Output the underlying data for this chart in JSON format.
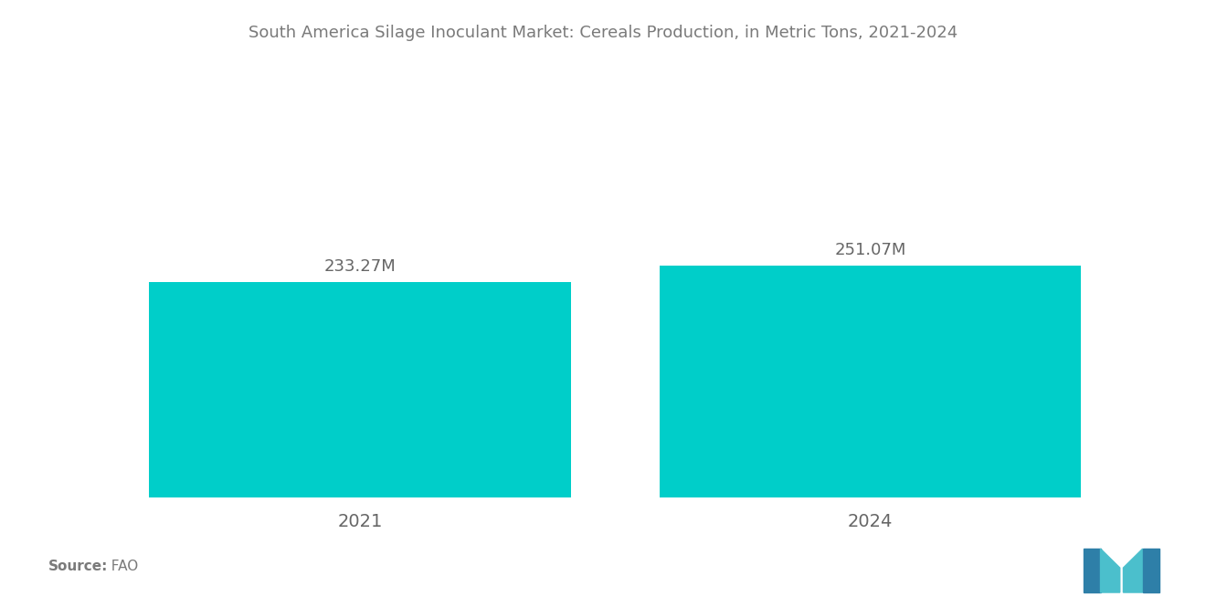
{
  "title": "South America Silage Inoculant Market: Cereals Production, in Metric Tons, 2021-2024",
  "categories": [
    "2021",
    "2024"
  ],
  "values": [
    233.27,
    251.07
  ],
  "labels": [
    "233.27M",
    "251.07M"
  ],
  "bar_color": "#00CEC9",
  "background_color": "#ffffff",
  "title_color": "#7a7a7a",
  "label_color": "#666666",
  "tick_color": "#666666",
  "source_label": "Source:",
  "source_value": "  FAO",
  "bar_width": 0.38,
  "ylim": [
    0,
    420
  ],
  "figsize": [
    13.2,
    6.65
  ],
  "dpi": 100
}
